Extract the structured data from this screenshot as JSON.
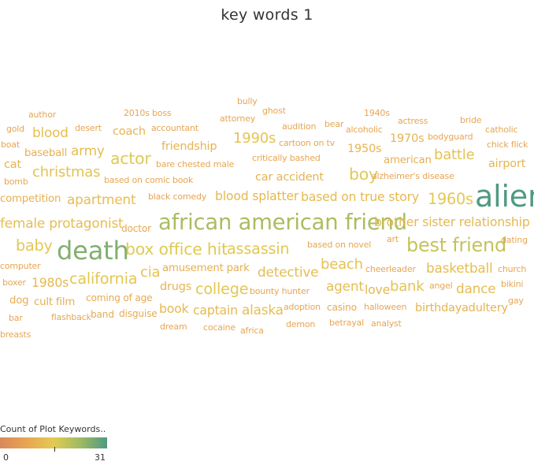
{
  "chart_data": {
    "type": "wordcloud",
    "title": "key words 1",
    "legend": {
      "title": "Count of Plot Keywords..",
      "min_label": "0",
      "max_label": "31",
      "min": 0,
      "max": 31
    },
    "words": [
      {
        "text": "bully",
        "value": 8
      },
      {
        "text": "author",
        "value": 8
      },
      {
        "text": "2010s boss",
        "value": 8
      },
      {
        "text": "ghost",
        "value": 8
      },
      {
        "text": "1940s",
        "value": 8
      },
      {
        "text": "attorney",
        "value": 8
      },
      {
        "text": "actress",
        "value": 8
      },
      {
        "text": "bride",
        "value": 8
      },
      {
        "text": "gold",
        "value": 8
      },
      {
        "text": "blood",
        "value": 13
      },
      {
        "text": "desert",
        "value": 8
      },
      {
        "text": "coach",
        "value": 11
      },
      {
        "text": "accountant",
        "value": 8
      },
      {
        "text": "audition",
        "value": 8
      },
      {
        "text": "bear",
        "value": 8
      },
      {
        "text": "alcoholic",
        "value": 8
      },
      {
        "text": "catholic",
        "value": 8
      },
      {
        "text": "boat",
        "value": 8
      },
      {
        "text": "1990s",
        "value": 14
      },
      {
        "text": "cartoon on tv",
        "value": 8
      },
      {
        "text": "1970s",
        "value": 11
      },
      {
        "text": "bodyguard",
        "value": 8
      },
      {
        "text": "chick flick",
        "value": 8
      },
      {
        "text": "army",
        "value": 13
      },
      {
        "text": "friendship",
        "value": 11
      },
      {
        "text": "baseball",
        "value": 10
      },
      {
        "text": "actor",
        "value": 16
      },
      {
        "text": "1950s",
        "value": 11
      },
      {
        "text": "battle",
        "value": 14
      },
      {
        "text": "critically bashed",
        "value": 8
      },
      {
        "text": "american",
        "value": 10
      },
      {
        "text": "cat",
        "value": 11
      },
      {
        "text": "bare chested male",
        "value": 8
      },
      {
        "text": "airport",
        "value": 11
      },
      {
        "text": "christmas",
        "value": 14
      },
      {
        "text": "boy",
        "value": 16
      },
      {
        "text": "based on comic book",
        "value": 8
      },
      {
        "text": "car accident",
        "value": 11
      },
      {
        "text": "alzheimer's disease",
        "value": 8
      },
      {
        "text": "bomb",
        "value": 8
      },
      {
        "text": "alien",
        "value": 31
      },
      {
        "text": "competition",
        "value": 10
      },
      {
        "text": "apartment",
        "value": 13
      },
      {
        "text": "black comedy",
        "value": 8
      },
      {
        "text": "blood splatter",
        "value": 12
      },
      {
        "text": "based on true story",
        "value": 12
      },
      {
        "text": "1960s",
        "value": 15
      },
      {
        "text": "female protagonist",
        "value": 13
      },
      {
        "text": "african american friend",
        "value": 22
      },
      {
        "text": "brother sister relationship",
        "value": 12
      },
      {
        "text": "doctor",
        "value": 9
      },
      {
        "text": "baby",
        "value": 15
      },
      {
        "text": "death",
        "value": 26
      },
      {
        "text": "box office hit",
        "value": 16
      },
      {
        "text": "assassin",
        "value": 15
      },
      {
        "text": "based on novel",
        "value": 8
      },
      {
        "text": "art",
        "value": 8
      },
      {
        "text": "best friend",
        "value": 19
      },
      {
        "text": "dating",
        "value": 8
      },
      {
        "text": "computer",
        "value": 8
      },
      {
        "text": "amusement park",
        "value": 10
      },
      {
        "text": "beach",
        "value": 14
      },
      {
        "text": "cheerleader",
        "value": 8
      },
      {
        "text": "basketball",
        "value": 13
      },
      {
        "text": "church",
        "value": 8
      },
      {
        "text": "cia",
        "value": 14
      },
      {
        "text": "detective",
        "value": 13
      },
      {
        "text": "boxer",
        "value": 8
      },
      {
        "text": "1980s",
        "value": 12
      },
      {
        "text": "california",
        "value": 15
      },
      {
        "text": "drugs",
        "value": 11
      },
      {
        "text": "college",
        "value": 15
      },
      {
        "text": "agent",
        "value": 13
      },
      {
        "text": "love",
        "value": 12
      },
      {
        "text": "bank",
        "value": 14
      },
      {
        "text": "angel",
        "value": 8
      },
      {
        "text": "dance",
        "value": 13
      },
      {
        "text": "bikini",
        "value": 8
      },
      {
        "text": "bounty hunter",
        "value": 8
      },
      {
        "text": "dog",
        "value": 10
      },
      {
        "text": "cult film",
        "value": 10
      },
      {
        "text": "coming of age",
        "value": 9
      },
      {
        "text": "gay",
        "value": 8
      },
      {
        "text": "book",
        "value": 12
      },
      {
        "text": "captain",
        "value": 12
      },
      {
        "text": "alaska",
        "value": 13
      },
      {
        "text": "adoption",
        "value": 8
      },
      {
        "text": "casino",
        "value": 9
      },
      {
        "text": "halloween",
        "value": 8
      },
      {
        "text": "birthday",
        "value": 11
      },
      {
        "text": "adultery",
        "value": 11
      },
      {
        "text": "bar",
        "value": 8
      },
      {
        "text": "flashback",
        "value": 8
      },
      {
        "text": "band",
        "value": 9
      },
      {
        "text": "disguise",
        "value": 9
      },
      {
        "text": "betrayal",
        "value": 8
      },
      {
        "text": "analyst",
        "value": 8
      },
      {
        "text": "dream",
        "value": 8
      },
      {
        "text": "cocaine",
        "value": 8
      },
      {
        "text": "africa",
        "value": 8
      },
      {
        "text": "demon",
        "value": 8
      },
      {
        "text": "breasts",
        "value": 8
      }
    ]
  }
}
